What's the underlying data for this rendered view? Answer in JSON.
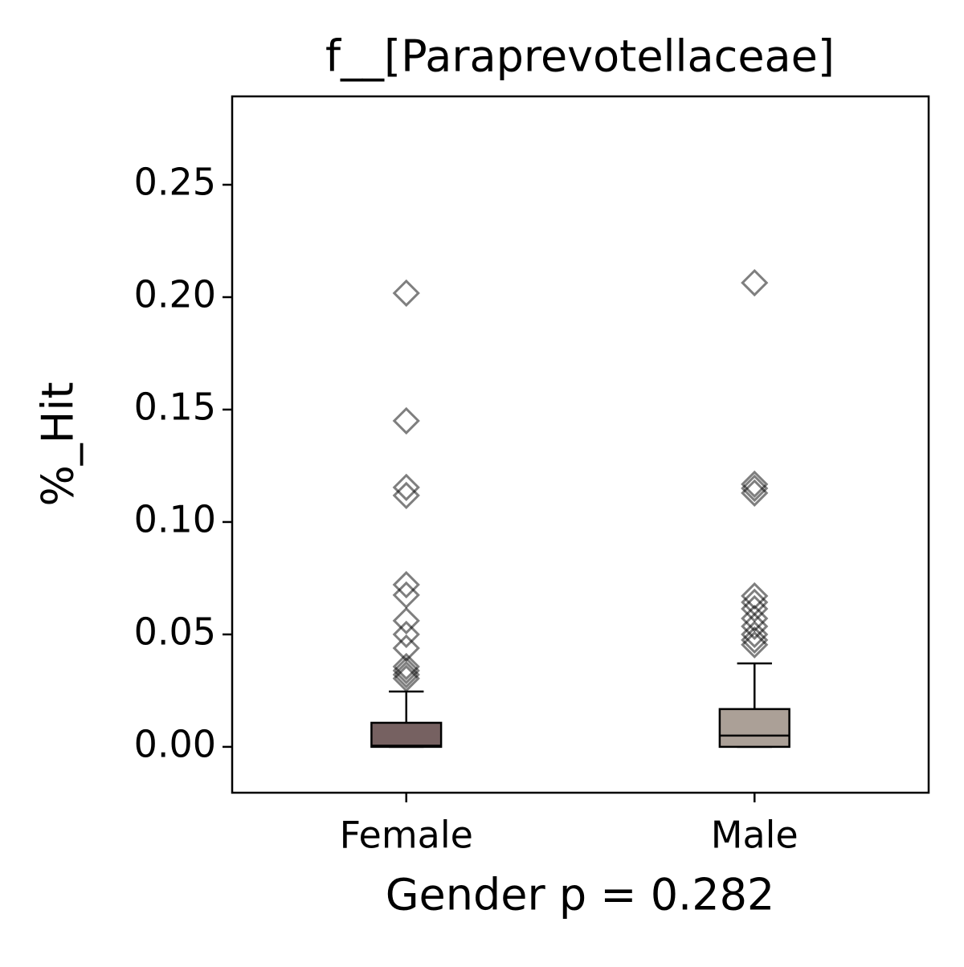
{
  "chart_data": {
    "type": "box",
    "title": "f__[Paraprevotellaceae]",
    "x_label": "Gender p = 0.282",
    "y_label": "%_Hit",
    "categories": [
      "Female",
      "Male"
    ],
    "boxes": [
      {
        "color": "#766161",
        "min": 0,
        "q1": 0,
        "median": 0.0005,
        "q3": 0.0107,
        "max": 0.0246,
        "outliers": [
          0.2018,
          0.145,
          0.1154,
          0.1118,
          0.0721,
          0.0675,
          0.0561,
          0.05,
          0.0439,
          0.0357,
          0.0339,
          0.0321,
          0.0304
        ]
      },
      {
        "color": "#aba097",
        "min": 0,
        "q1": 0,
        "median": 0.005,
        "q3": 0.0168,
        "max": 0.0371,
        "outliers": [
          0.2064,
          0.1168,
          0.115,
          0.1129,
          0.0671,
          0.0643,
          0.0614,
          0.0571,
          0.0536,
          0.05,
          0.0475,
          0.0454
        ]
      }
    ],
    "outlier_color": "#000000",
    "ylim": [
      -0.0204,
      0.2893
    ],
    "yticks": [
      {
        "value": 0,
        "label": "0.00"
      },
      {
        "value": 0.05,
        "label": "0.05"
      },
      {
        "value": 0.1,
        "label": "0.10"
      },
      {
        "value": 0.15,
        "label": "0.15"
      },
      {
        "value": 0.2,
        "label": "0.20"
      },
      {
        "value": 0.25,
        "label": "0.25"
      }
    ]
  }
}
